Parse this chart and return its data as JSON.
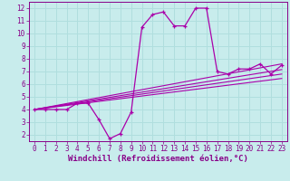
{
  "title": "",
  "xlabel": "Windchill (Refroidissement éolien,°C)",
  "ylabel": "",
  "bg_color": "#c8ecec",
  "line_color": "#aa00aa",
  "grid_color": "#b0dede",
  "axis_color": "#880088",
  "xlim": [
    -0.5,
    23.5
  ],
  "ylim": [
    1.5,
    12.5
  ],
  "xticks": [
    0,
    1,
    2,
    3,
    4,
    5,
    6,
    7,
    8,
    9,
    10,
    11,
    12,
    13,
    14,
    15,
    16,
    17,
    18,
    19,
    20,
    21,
    22,
    23
  ],
  "yticks": [
    2,
    3,
    4,
    5,
    6,
    7,
    8,
    9,
    10,
    11,
    12
  ],
  "main_x": [
    0,
    1,
    2,
    3,
    4,
    5,
    6,
    7,
    8,
    9,
    10,
    11,
    12,
    13,
    14,
    15,
    16,
    17,
    18,
    19,
    20,
    21,
    22,
    23
  ],
  "main_y": [
    4.0,
    4.0,
    4.0,
    4.0,
    4.5,
    4.5,
    3.2,
    1.7,
    2.1,
    3.8,
    10.5,
    11.5,
    11.7,
    10.6,
    10.6,
    12.0,
    12.0,
    7.0,
    6.8,
    7.2,
    7.2,
    7.6,
    6.8,
    7.5
  ],
  "ref_lines": [
    {
      "x": [
        0,
        23
      ],
      "y": [
        4.0,
        7.6
      ]
    },
    {
      "x": [
        0,
        23
      ],
      "y": [
        4.0,
        7.15
      ]
    },
    {
      "x": [
        0,
        23
      ],
      "y": [
        4.0,
        6.8
      ]
    },
    {
      "x": [
        0,
        23
      ],
      "y": [
        4.0,
        6.45
      ]
    }
  ],
  "font_family": "monospace",
  "tick_fontsize": 5.5,
  "label_fontsize": 6.5
}
